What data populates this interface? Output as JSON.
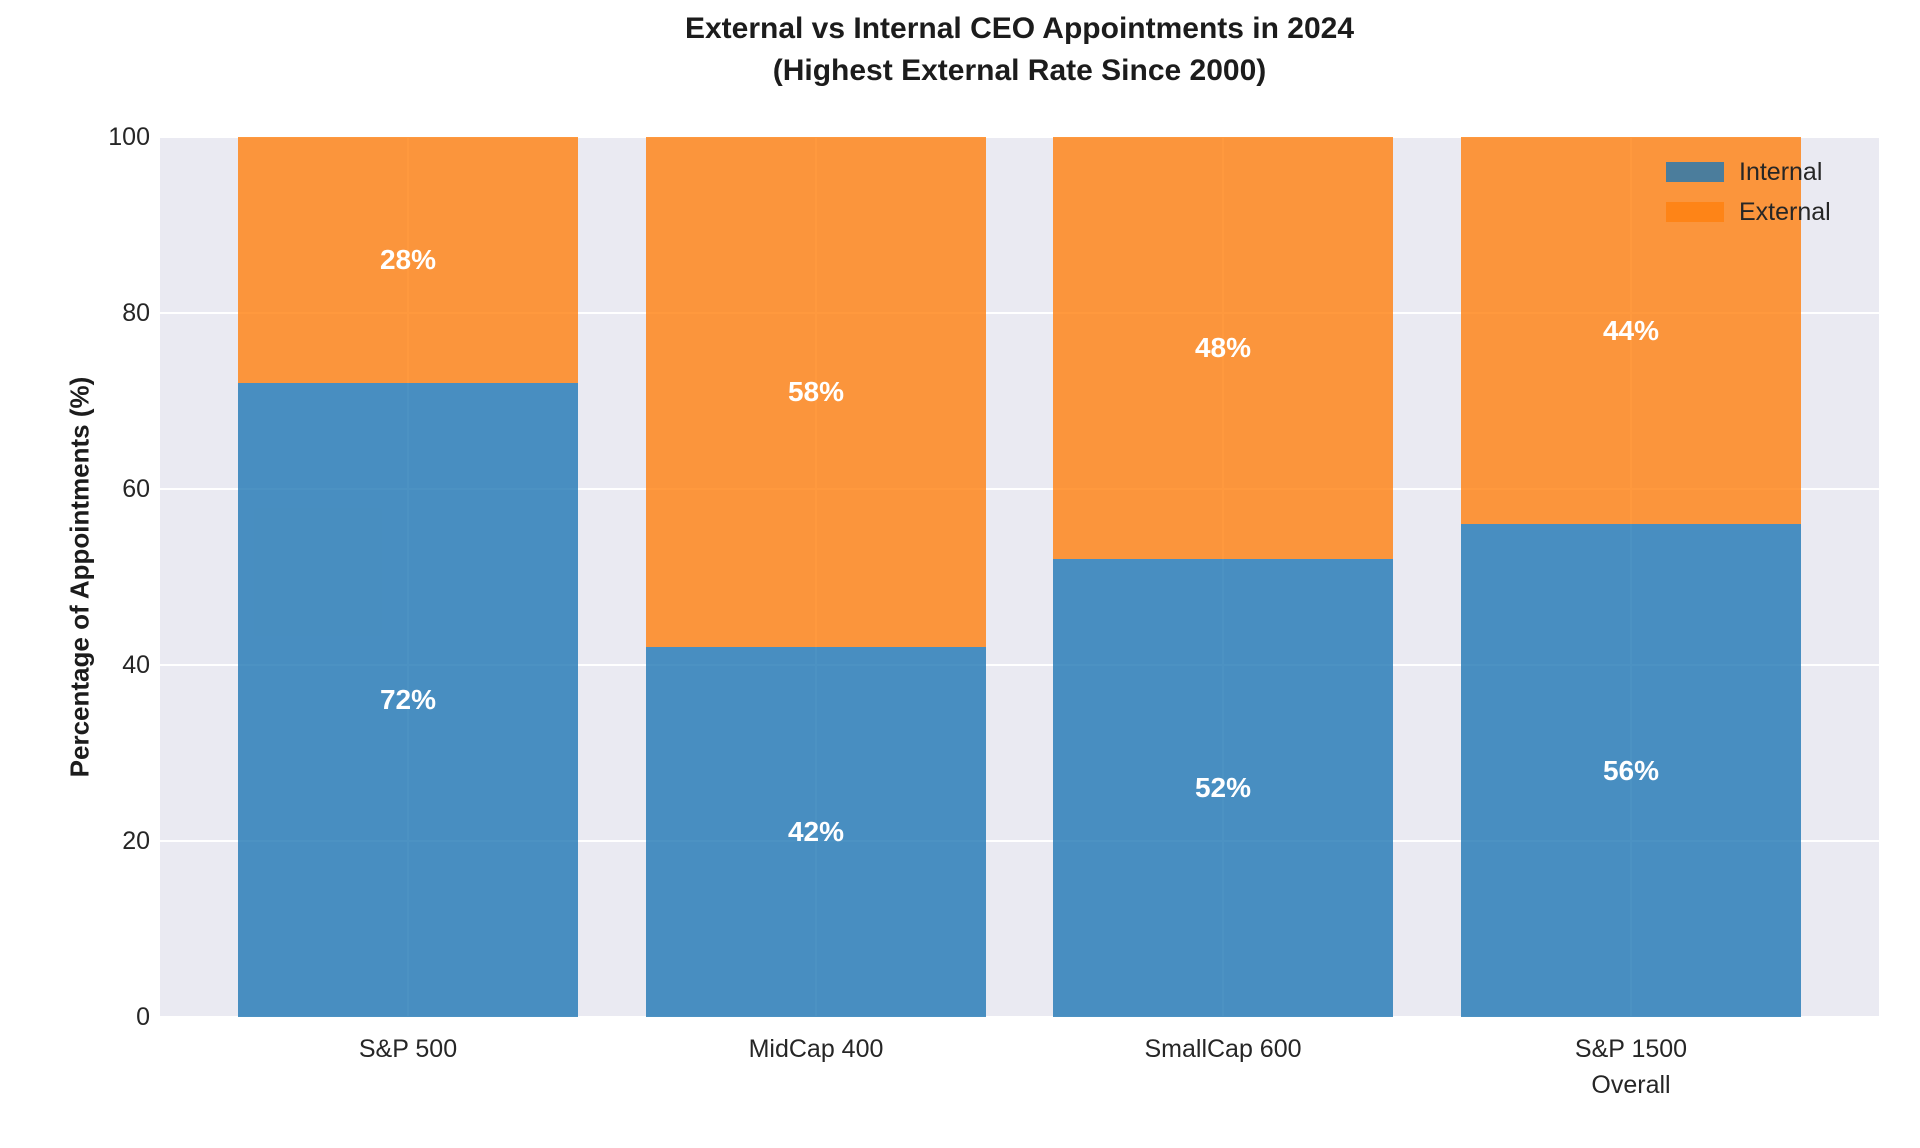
{
  "chart_data": {
    "type": "bar",
    "stacked": true,
    "title": "External vs Internal CEO Appointments in 2024",
    "subtitle": "(Highest External Rate Since 2000)",
    "xlabel": "",
    "ylabel": "Percentage of Appointments (%)",
    "categories": [
      "S&P 500",
      "MidCap 400",
      "SmallCap 600",
      "S&P 1500\nOverall"
    ],
    "series": [
      {
        "name": "Internal",
        "values": [
          72,
          42,
          52,
          56
        ],
        "labels": [
          "72%",
          "42%",
          "52%",
          "56%"
        ],
        "color": "#1f77b4",
        "alpha": 0.8
      },
      {
        "name": "External",
        "values": [
          28,
          58,
          48,
          44
        ],
        "labels": [
          "28%",
          "58%",
          "48%",
          "44%"
        ],
        "color": "#ff7f0e",
        "alpha": 0.8
      }
    ],
    "ylim": [
      0,
      100
    ],
    "yticks": [
      0,
      20,
      40,
      60,
      80,
      100
    ],
    "grid": true,
    "legend_position": "upper right",
    "colors": {
      "plot_background": "#eaeaf2",
      "grid": "#ffffff",
      "tick_text": "#262626",
      "title_text": "#1c1c1c",
      "bar_label_text": "#ffffff"
    }
  }
}
